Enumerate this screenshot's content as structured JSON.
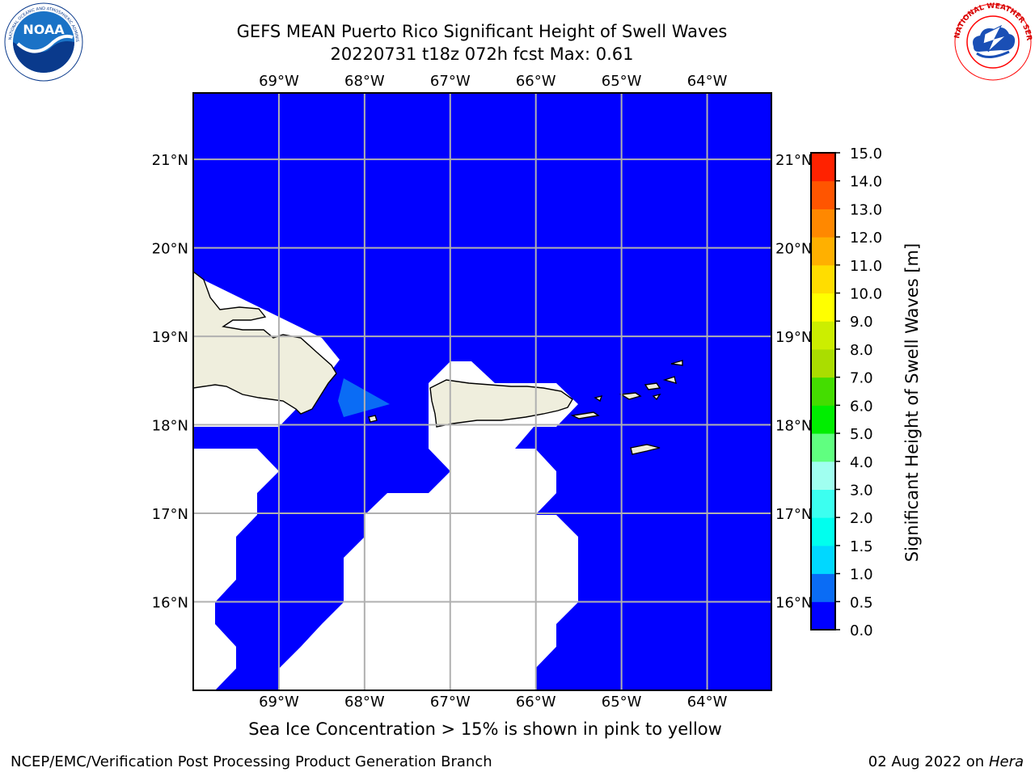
{
  "title": {
    "line1": "GEFS MEAN Puerto Rico Significant Height of Swell Waves",
    "line2": "20220731 t18z 072h fcst   Max: 0.61"
  },
  "map": {
    "lon_labels": [
      "69°W",
      "68°W",
      "67°W",
      "66°W",
      "65°W",
      "64°W"
    ],
    "lat_labels": [
      "21°N",
      "20°N",
      "19°N",
      "18°N",
      "17°N",
      "16°N"
    ],
    "lon_range": [
      -70,
      -63.25
    ],
    "lat_range": [
      15.0,
      21.75
    ],
    "ocean_color": "#0000ff",
    "swell_patch_color": "#0a6cf5",
    "land_color": "#efeedd",
    "no_data_color": "#ffffff"
  },
  "colorbar": {
    "label": "Significant Height of Swell Waves [m]",
    "ticks": [
      "0.0",
      "0.5",
      "1.0",
      "1.5",
      "2.0",
      "3.0",
      "4.0",
      "5.0",
      "6.0",
      "7.0",
      "8.0",
      "9.0",
      "10.0",
      "11.0",
      "12.0",
      "13.0",
      "14.0",
      "15.0"
    ],
    "colors": [
      "#0000ff",
      "#0a6cf5",
      "#00d8ff",
      "#00ffee",
      "#3cfff0",
      "#a0fff0",
      "#60ff80",
      "#00ee00",
      "#44dd00",
      "#aadd00",
      "#ccee00",
      "#ffff00",
      "#ffdd00",
      "#ffb000",
      "#ff8800",
      "#ff5500",
      "#ff2200"
    ]
  },
  "caption": "Sea Ice Concentration > 15% is shown in pink to yellow",
  "footer": {
    "left": "NCEP/EMC/Verification Post Processing Product Generation Branch",
    "right_date": "02 Aug 2022 on",
    "right_machine": "Hera"
  },
  "logos": {
    "left": "noaa-logo",
    "right": "nws-logo",
    "left_text": "NATIONAL OCEANIC AND ATMOSPHERIC ADMINISTRATION · U.S. DEPARTMENT OF COMMERCE",
    "right_text": "NATIONAL WEATHER SERVICE"
  }
}
